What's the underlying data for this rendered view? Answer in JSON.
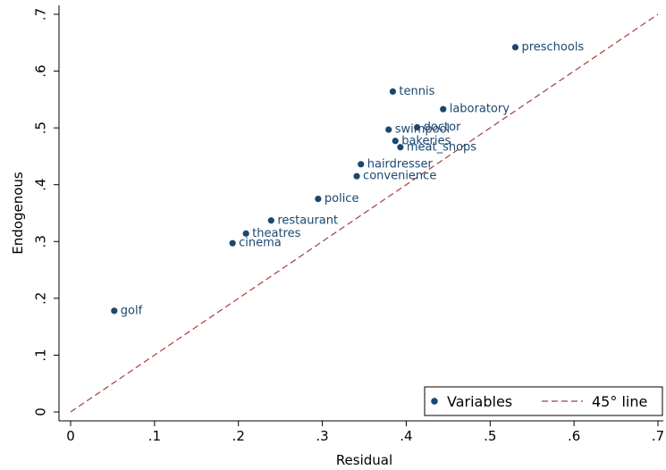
{
  "chart_data": {
    "type": "scatter",
    "xlabel": "Residual",
    "ylabel": "Endogenous",
    "xlim": [
      0,
      0.7
    ],
    "ylim": [
      0,
      0.7
    ],
    "x_ticks": [
      0,
      0.1,
      0.2,
      0.3,
      0.4,
      0.5,
      0.6,
      0.7
    ],
    "x_tick_labels": [
      "0",
      ".1",
      ".2",
      ".3",
      ".4",
      ".5",
      ".6",
      ".7"
    ],
    "y_ticks": [
      0,
      0.1,
      0.2,
      0.3,
      0.4,
      0.5,
      0.6,
      0.7
    ],
    "y_tick_labels": [
      "0",
      ".1",
      ".2",
      ".3",
      ".4",
      ".5",
      ".6",
      ".7"
    ],
    "grid": false,
    "legend_position": "bottom-right",
    "colors": {
      "points": "#1a476f",
      "line": "#a63d3d"
    },
    "series": [
      {
        "name": "Variables",
        "points": [
          {
            "label": "golf",
            "x": 0.052,
            "y": 0.178
          },
          {
            "label": "cinema",
            "x": 0.193,
            "y": 0.297
          },
          {
            "label": "theatres",
            "x": 0.209,
            "y": 0.314
          },
          {
            "label": "restaurant",
            "x": 0.239,
            "y": 0.337
          },
          {
            "label": "police",
            "x": 0.295,
            "y": 0.375
          },
          {
            "label": "convenience",
            "x": 0.341,
            "y": 0.415
          },
          {
            "label": "hairdresser",
            "x": 0.346,
            "y": 0.436
          },
          {
            "label": "meat_shops",
            "x": 0.393,
            "y": 0.466
          },
          {
            "label": "bakeries",
            "x": 0.387,
            "y": 0.477
          },
          {
            "label": "swimpool",
            "x": 0.379,
            "y": 0.497
          },
          {
            "label": "doctor",
            "x": 0.413,
            "y": 0.501
          },
          {
            "label": "laboratory",
            "x": 0.444,
            "y": 0.533
          },
          {
            "label": "tennis",
            "x": 0.384,
            "y": 0.564
          },
          {
            "label": "preschools",
            "x": 0.53,
            "y": 0.642
          }
        ]
      },
      {
        "name": "45° line",
        "type": "line",
        "x": [
          0,
          0.7
        ],
        "y": [
          0,
          0.7
        ]
      }
    ]
  }
}
